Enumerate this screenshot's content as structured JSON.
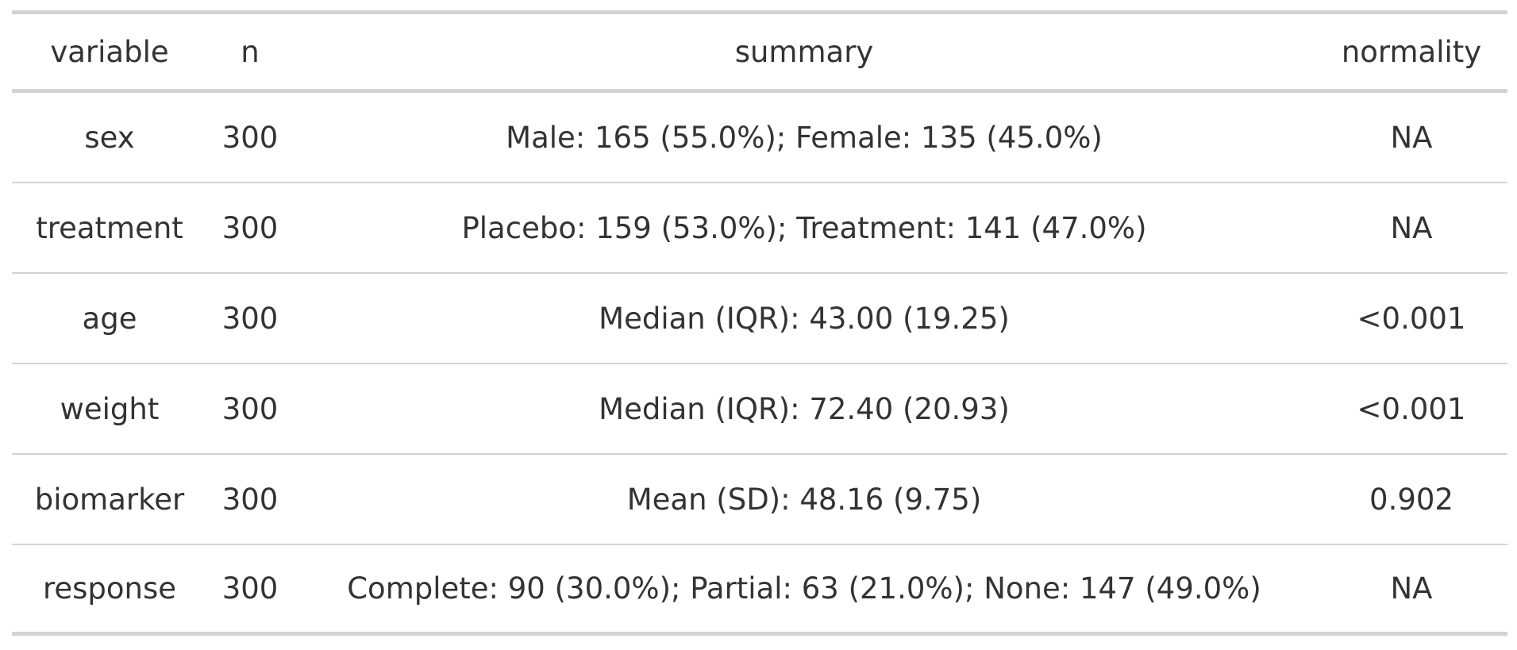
{
  "table": {
    "header": [
      "variable",
      "n",
      "summary",
      "normality"
    ],
    "rows": [
      [
        "sex",
        "300",
        "Male: 165 (55.0%); Female: 135 (45.0%)",
        "NA"
      ],
      [
        "treatment",
        "300",
        "Placebo: 159 (53.0%); Treatment: 141 (47.0%)",
        "NA"
      ],
      [
        "age",
        "300",
        "Median (IQR): 43.00 (19.25)",
        "<0.001"
      ],
      [
        "weight",
        "300",
        "Median (IQR): 72.40 (20.93)",
        "<0.001"
      ],
      [
        "biomarker",
        "300",
        "Mean (SD): 48.16 (9.75)",
        "0.902"
      ],
      [
        "response",
        "300",
        "Complete: 90 (30.0%); Partial: 63 (21.0%); None: 147 (49.0%)",
        "NA"
      ]
    ]
  }
}
